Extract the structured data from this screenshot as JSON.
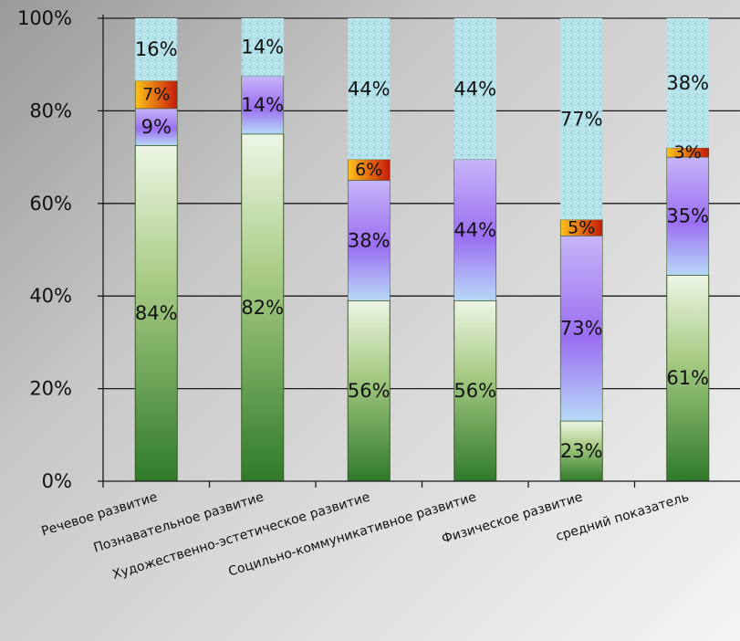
{
  "chart_data": {
    "type": "bar",
    "stacked": true,
    "percent_stacked": true,
    "title": "",
    "xlabel": "",
    "ylabel": "",
    "ylim": [
      0,
      100
    ],
    "yticks": [
      "0%",
      "20%",
      "40%",
      "60%",
      "80%",
      "100%"
    ],
    "grid": true,
    "legend": "none",
    "categories": [
      "Речевое развитие",
      "Познавательное развитие",
      "Художественно-эстетическое развитие",
      "Социльно-коммуникативное развитие",
      "Физическое развитие",
      "средний показатель"
    ],
    "series": [
      {
        "color": "#4f8f2f",
        "values": [
          72.5,
          75,
          39,
          39,
          13,
          44.5
        ],
        "labels": [
          "84%",
          "82%",
          "56%",
          "56%",
          "23%",
          "61%"
        ]
      },
      {
        "color": "#a97df2",
        "values": [
          8,
          12.5,
          26,
          30.5,
          40,
          25.5
        ],
        "labels": [
          "9%",
          "14%",
          "38%",
          "44%",
          "73%",
          "35%"
        ]
      },
      {
        "color": "#e05a10",
        "values": [
          6,
          0,
          4.5,
          0,
          3.5,
          2
        ],
        "labels": [
          "7%",
          "",
          "6%",
          "",
          "5%",
          "3%"
        ]
      },
      {
        "color": "#aee0ea",
        "values": [
          13.5,
          12.5,
          30.5,
          30.5,
          43.5,
          28
        ],
        "labels": [
          "16%",
          "14%",
          "44%",
          "44%",
          "77%",
          "38%"
        ]
      }
    ]
  }
}
